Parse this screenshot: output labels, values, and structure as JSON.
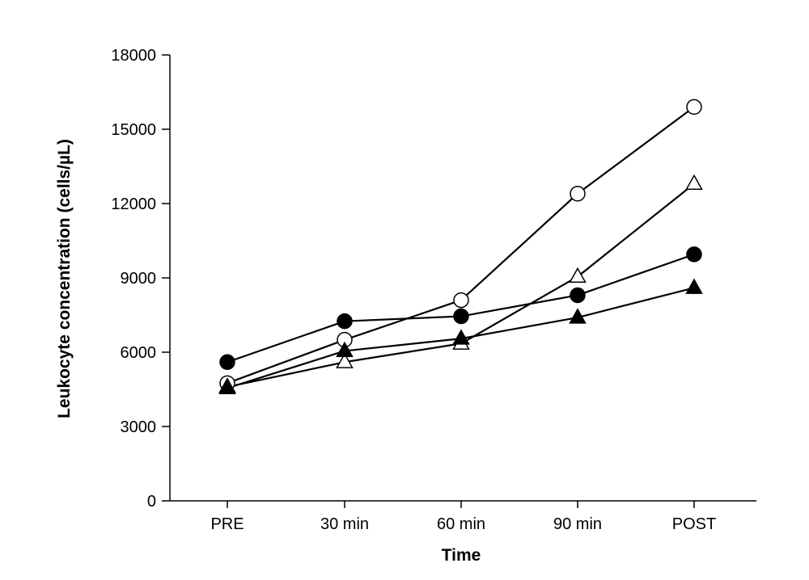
{
  "chart_data": {
    "type": "line",
    "title": "",
    "xlabel": "Time",
    "ylabel": "Leukocyte concentration (cells/µL)",
    "categories": [
      "PRE",
      "30 min",
      "60 min",
      "90 min",
      "POST"
    ],
    "ylim": [
      0,
      18000
    ],
    "yticks": [
      0,
      3000,
      6000,
      9000,
      12000,
      15000,
      18000
    ],
    "grid": false,
    "legend": "none",
    "series": [
      {
        "marker": "filled-circle",
        "color": "#000000",
        "values": [
          5600,
          7250,
          7450,
          8300,
          9950
        ]
      },
      {
        "marker": "open-circle",
        "color": "#000000",
        "values": [
          4750,
          6500,
          8100,
          12400,
          15900
        ]
      },
      {
        "marker": "open-triangle",
        "color": "#000000",
        "values": [
          4600,
          5600,
          6350,
          9050,
          12800
        ]
      },
      {
        "marker": "filled-triangle",
        "color": "#000000",
        "values": [
          4550,
          6050,
          6550,
          7400,
          8600
        ]
      }
    ]
  }
}
